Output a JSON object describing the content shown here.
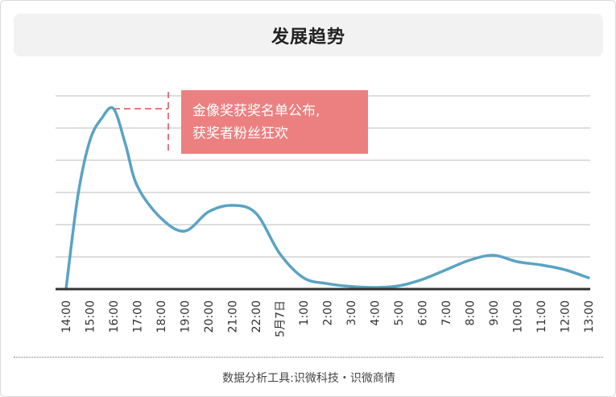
{
  "chart_data": {
    "type": "line",
    "title": "发展趋势",
    "x_labels": [
      "14:00",
      "15:00",
      "16:00",
      "17:00",
      "18:00",
      "19:00",
      "20:00",
      "21:00",
      "22:00",
      "5月7日",
      "1:00",
      "2:00",
      "3:00",
      "4:00",
      "5:00",
      "6:00",
      "7:00",
      "8:00",
      "9:00",
      "10:00",
      "11:00",
      "12:00",
      "13:00"
    ],
    "y_range": [
      0,
      6
    ],
    "y_gridlines": 6,
    "series": [
      {
        "points": [
          {
            "x": 0,
            "y": 0
          },
          {
            "x": 0.5,
            "y": 2.9
          },
          {
            "x": 1.0,
            "y": 4.6
          },
          {
            "x": 1.5,
            "y": 5.3
          },
          {
            "x": 2.0,
            "y": 5.6
          },
          {
            "x": 2.5,
            "y": 4.5
          },
          {
            "x": 3.0,
            "y": 3.2
          },
          {
            "x": 4.0,
            "y": 2.2
          },
          {
            "x": 5.0,
            "y": 1.8
          },
          {
            "x": 6.0,
            "y": 2.4
          },
          {
            "x": 7.0,
            "y": 2.6
          },
          {
            "x": 8.0,
            "y": 2.35
          },
          {
            "x": 9.0,
            "y": 1.1
          },
          {
            "x": 10.0,
            "y": 0.35
          },
          {
            "x": 11.0,
            "y": 0.17
          },
          {
            "x": 12.0,
            "y": 0.08
          },
          {
            "x": 13.0,
            "y": 0.05
          },
          {
            "x": 14.0,
            "y": 0.1
          },
          {
            "x": 15.0,
            "y": 0.3
          },
          {
            "x": 16.0,
            "y": 0.6
          },
          {
            "x": 17.0,
            "y": 0.9
          },
          {
            "x": 18.0,
            "y": 1.05
          },
          {
            "x": 19.0,
            "y": 0.85
          },
          {
            "x": 20.0,
            "y": 0.75
          },
          {
            "x": 21.0,
            "y": 0.6
          },
          {
            "x": 22.0,
            "y": 0.35
          }
        ]
      }
    ],
    "annotation": {
      "x": 2.0,
      "y": 5.6,
      "lines": [
        "金像奖获奖名单公布,",
        "获奖者粉丝狂欢"
      ]
    },
    "colors": {
      "line": "#5aa3c4",
      "annotation_box": "#ec8080",
      "annotation_dash": "#d94f5c",
      "grid": "#bdbdbd",
      "axis": "#333333"
    }
  },
  "footer": {
    "text": "数据分析工具:识微科技・识微商情"
  }
}
